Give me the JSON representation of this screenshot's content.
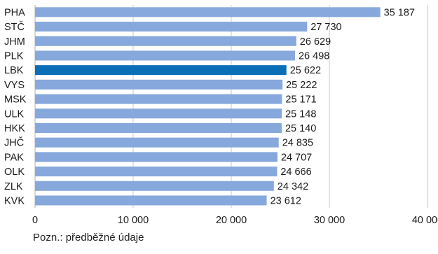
{
  "chart_data": {
    "type": "bar",
    "orientation": "horizontal",
    "categories": [
      "PHA",
      "STČ",
      "JHM",
      "PLK",
      "LBK",
      "VYS",
      "MSK",
      "ULK",
      "HKK",
      "JHČ",
      "PAK",
      "OLK",
      "ZLK",
      "KVK"
    ],
    "values": [
      35187,
      27730,
      26629,
      26498,
      25622,
      25222,
      25171,
      25148,
      25140,
      24835,
      24707,
      24666,
      24342,
      23612
    ],
    "value_labels": [
      "35 187",
      "27 730",
      "26 629",
      "26 498",
      "25 622",
      "25 222",
      "25 171",
      "25 148",
      "25 140",
      "24 835",
      "24 707",
      "24 666",
      "24 342",
      "23 612"
    ],
    "highlight_category": "LBK",
    "xlim": [
      0,
      40000
    ],
    "x_ticks": [
      0,
      10000,
      20000,
      30000,
      40000
    ],
    "x_tick_labels": [
      "0",
      "10 000",
      "20 000",
      "30 000",
      "40 000"
    ],
    "grid": true,
    "title": "",
    "xlabel": "",
    "ylabel": "",
    "colors": {
      "bar": "#86a8dc",
      "highlight": "#0b6fb8",
      "grid": "#c9c9c9",
      "axis": "#b0b0b0",
      "text": "#1a1a1a"
    }
  },
  "note": "Pozn.: předběžné údaje"
}
